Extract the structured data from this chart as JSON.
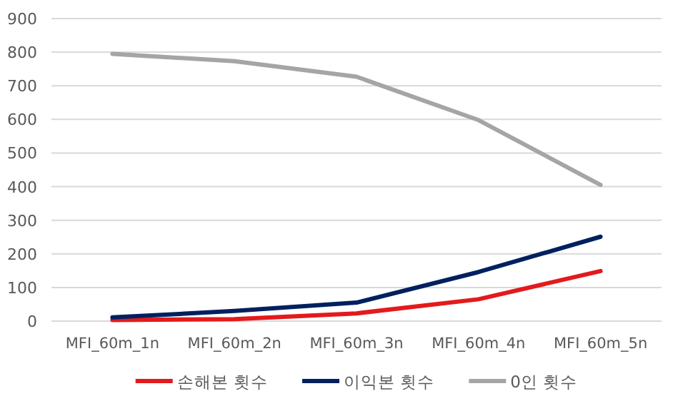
{
  "chart_data": {
    "type": "line",
    "categories": [
      "MFI_60m_1n",
      "MFI_60m_2n",
      "MFI_60m_3n",
      "MFI_60m_4n",
      "MFI_60m_5n"
    ],
    "series": [
      {
        "name": "손해본 횟수",
        "color": "#e31a1c",
        "values": [
          3,
          6,
          23,
          65,
          149
        ]
      },
      {
        "name": "이익본 횟수",
        "color": "#002060",
        "values": [
          11,
          30,
          55,
          146,
          251
        ]
      },
      {
        "name": "0인 횟수",
        "color": "#a5a5a5",
        "values": [
          795,
          773,
          727,
          598,
          405
        ]
      }
    ],
    "ylim": [
      0,
      900
    ],
    "yticks": [
      0,
      100,
      200,
      300,
      400,
      500,
      600,
      700,
      800,
      900
    ],
    "grid": "y",
    "legend": "bottom",
    "marker": "none",
    "line_style": "solid"
  }
}
